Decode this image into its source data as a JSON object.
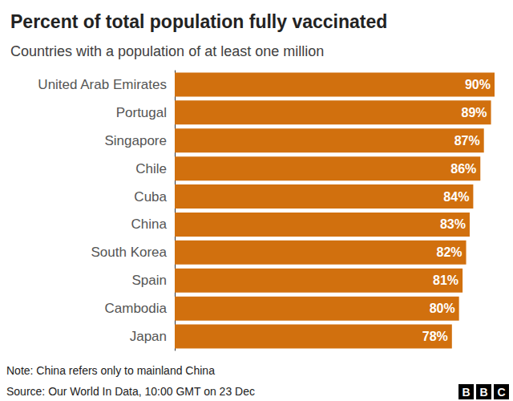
{
  "chart_data": {
    "type": "bar",
    "title": "Percent of total population fully vaccinated",
    "subtitle": "Countries with a population of at least one million",
    "categories": [
      "United Arab Emirates",
      "Portugal",
      "Singapore",
      "Chile",
      "Cuba",
      "China",
      "South Korea",
      "Spain",
      "Cambodia",
      "Japan"
    ],
    "values": [
      90,
      89,
      87,
      86,
      84,
      83,
      82,
      81,
      80,
      78
    ],
    "value_labels": [
      "90%",
      "89%",
      "87%",
      "86%",
      "84%",
      "83%",
      "82%",
      "81%",
      "80%",
      "78%"
    ],
    "color": "#d1700e",
    "orientation": "horizontal",
    "data_labels": true,
    "tick_labels": "y",
    "grid": false,
    "xlim": [
      0,
      90
    ],
    "note": "Note: China refers only to mainland China",
    "source": "Source: Our World In Data, 10:00 GMT on 23 Dec",
    "logo": "BBC"
  }
}
